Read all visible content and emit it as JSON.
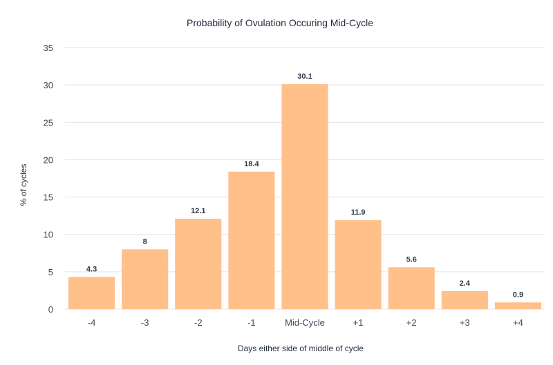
{
  "chart_data": {
    "type": "bar",
    "title": "Probability of Ovulation Occuring Mid-Cycle",
    "xlabel": "Days either side of middle of cycle",
    "ylabel": "% of cycles",
    "categories": [
      "-4",
      "-3",
      "-2",
      "-1",
      "Mid-Cycle",
      "+1",
      "+2",
      "+3",
      "+4"
    ],
    "values": [
      4.3,
      8,
      12.1,
      18.4,
      30.1,
      11.9,
      5.6,
      2.4,
      0.9
    ],
    "value_labels": [
      "4.3",
      "8",
      "12.1",
      "18.4",
      "30.1",
      "11.9",
      "5.6",
      "2.4",
      "0.9"
    ],
    "ylim": [
      0,
      35
    ],
    "yticks": [
      "0",
      "5",
      "10",
      "15",
      "20",
      "25",
      "30",
      "35"
    ],
    "grid": true,
    "legend": "none",
    "bar_color": "#ffc08a"
  }
}
